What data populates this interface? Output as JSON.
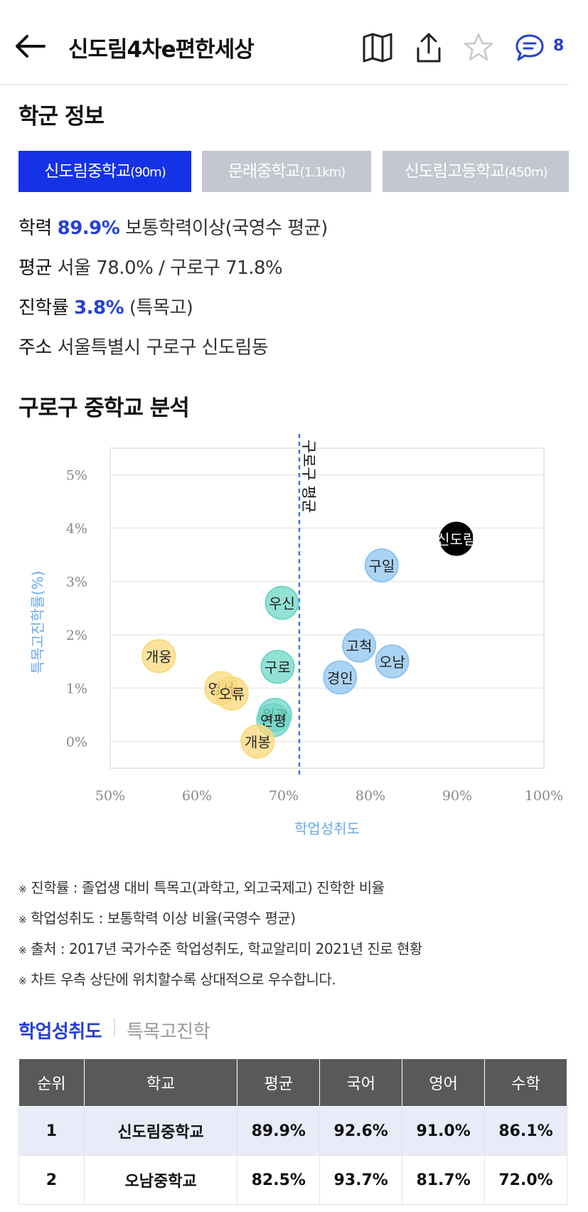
{
  "header": {
    "title": "신도림4차e편한세상",
    "comment_count": "8"
  },
  "school_section": {
    "title": "학군 정보",
    "tabs": [
      {
        "name": "신도림중학교",
        "dist": "(90m)",
        "active": true
      },
      {
        "name": "문래중학교",
        "dist": "(1.1km)",
        "active": false
      },
      {
        "name": "신도림고등학교",
        "dist": "(450m)",
        "active": false
      }
    ],
    "info": {
      "achievement_label": "학력",
      "achievement_value": "89.9%",
      "achievement_desc": "보통학력이상(국영수 평균)",
      "avg_label": "평균",
      "avg_value": "서울 78.0% / 구로구 71.8%",
      "advance_label": "진학률",
      "advance_value": "3.8%",
      "advance_desc": "(특목고)",
      "address_label": "주소",
      "address_value": "서울특별시 구로구 신도림동"
    }
  },
  "analysis": {
    "title": "구로구 중학교 분석"
  },
  "chart_data": {
    "type": "scatter",
    "xlabel": "학업성취도",
    "ylabel": "특목고진학률(%)",
    "xlim": [
      50,
      100
    ],
    "ylim": [
      -0.5,
      5.5
    ],
    "x_ticks": [
      "50%",
      "60%",
      "70%",
      "80%",
      "90%",
      "100%"
    ],
    "y_ticks": [
      "0%",
      "1%",
      "2%",
      "3%",
      "4%",
      "5%"
    ],
    "reference_line": {
      "x": 71.8,
      "label": "구로구 평균"
    },
    "points": [
      {
        "label": "신도림",
        "x": 89.9,
        "y": 3.8,
        "color": "#000000"
      },
      {
        "label": "구일",
        "x": 81.3,
        "y": 3.3,
        "color": "#8fc4ef"
      },
      {
        "label": "고척",
        "x": 78.7,
        "y": 1.8,
        "color": "#8fc4ef"
      },
      {
        "label": "오남",
        "x": 82.5,
        "y": 1.5,
        "color": "#8fc4ef"
      },
      {
        "label": "경인",
        "x": 76.5,
        "y": 1.2,
        "color": "#8fc4ef"
      },
      {
        "label": "우신",
        "x": 69.8,
        "y": 2.6,
        "color": "#6fd6c5"
      },
      {
        "label": "구로",
        "x": 69.3,
        "y": 1.4,
        "color": "#6fd6c5"
      },
      {
        "label": "원광",
        "x": 69.0,
        "y": 0.5,
        "color": "#6fd6c5"
      },
      {
        "label": "연평",
        "x": 68.8,
        "y": 0.4,
        "color": "#6fd6c5"
      },
      {
        "label": "개웅",
        "x": 55.6,
        "y": 1.6,
        "color": "#fbd97c"
      },
      {
        "label": "영서",
        "x": 62.8,
        "y": 1.0,
        "color": "#fbd97c"
      },
      {
        "label": "오류",
        "x": 64.0,
        "y": 0.9,
        "color": "#fbd97c"
      },
      {
        "label": "개봉",
        "x": 67.0,
        "y": 0.0,
        "color": "#fbd97c"
      }
    ]
  },
  "notes": [
    "진학률 : 졸업생 대비 특목고(과학고, 외고국제고) 진학한 비율",
    "학업성취도 : 보통학력 이상 비율(국영수 평균)",
    "출처 : 2017년 국가수준 학업성취도, 학교알리미 2021년 진로 현황",
    "차트 우측 상단에 위치할수록 상대적으로 우수합니다."
  ],
  "note_mark": "※",
  "sub_tabs": {
    "active": "학업성취도",
    "inactive": "특목고진학"
  },
  "table": {
    "headers": [
      "순위",
      "학교",
      "평균",
      "국어",
      "영어",
      "수학"
    ],
    "rows": [
      [
        "1",
        "신도림중학교",
        "89.9%",
        "92.6%",
        "91.0%",
        "86.1%"
      ],
      [
        "2",
        "오남중학교",
        "82.5%",
        "93.7%",
        "81.7%",
        "72.0%"
      ]
    ]
  },
  "colors": {
    "accent": "#2640d6",
    "tab_active": "#1632e6",
    "tab_inactive": "#c3c7cf",
    "table_header": "#595959"
  }
}
